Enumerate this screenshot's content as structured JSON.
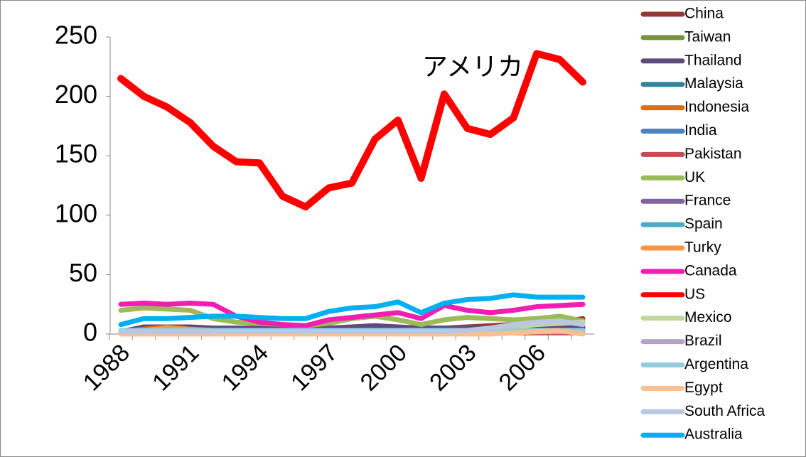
{
  "chart_data": {
    "type": "line",
    "annotation": "アメリカ",
    "categories": [
      "1988",
      null,
      null,
      "1991",
      null,
      null,
      "1994",
      null,
      null,
      "1997",
      null,
      null,
      "2000",
      null,
      null,
      "2003",
      null,
      null,
      "2006",
      null,
      null
    ],
    "ylim": [
      0,
      250
    ],
    "yticks": [
      0,
      50,
      100,
      150,
      200,
      250
    ],
    "series": [
      {
        "name": "China",
        "color": "#953735",
        "values": [
          1,
          1,
          1,
          2,
          2,
          2,
          2,
          2,
          3,
          3,
          3,
          4,
          4,
          4,
          5,
          6,
          7,
          8,
          9,
          10,
          13
        ]
      },
      {
        "name": "Taiwan",
        "color": "#77933c",
        "values": [
          3,
          3,
          3,
          3,
          3,
          3,
          3,
          3,
          3,
          3,
          4,
          4,
          4,
          4,
          5,
          5,
          5,
          6,
          6,
          6,
          6
        ]
      },
      {
        "name": "Thailand",
        "color": "#604a7b",
        "values": [
          2,
          6,
          6,
          6,
          5,
          5,
          5,
          5,
          5,
          5,
          6,
          7,
          6,
          5,
          5,
          5,
          5,
          5,
          5,
          5,
          5
        ]
      },
      {
        "name": "Malaysia",
        "color": "#31849b",
        "values": [
          1,
          2,
          2,
          2,
          2,
          2,
          2,
          2,
          2,
          2,
          2,
          2,
          2,
          2,
          2,
          2,
          2,
          2,
          2,
          2,
          2
        ]
      },
      {
        "name": "Indonesia",
        "color": "#e46c0a",
        "values": [
          2,
          4,
          6,
          4,
          3,
          3,
          3,
          3,
          3,
          3,
          2,
          2,
          2,
          2,
          2,
          2,
          2,
          2,
          2,
          2,
          2
        ]
      },
      {
        "name": "India",
        "color": "#4f81bd",
        "values": [
          2,
          2,
          2,
          3,
          3,
          3,
          3,
          3,
          3,
          3,
          3,
          3,
          3,
          3,
          3,
          3,
          3,
          3,
          3,
          3,
          3
        ]
      },
      {
        "name": "Pakistan",
        "color": "#c0504d",
        "values": [
          1,
          1,
          1,
          1,
          1,
          1,
          1,
          1,
          1,
          1,
          1,
          1,
          1,
          1,
          1,
          1,
          1,
          1,
          1,
          1,
          1
        ]
      },
      {
        "name": "UK",
        "color": "#9bbb59",
        "values": [
          20,
          22,
          21,
          20,
          13,
          10,
          9,
          8,
          7,
          9,
          13,
          15,
          12,
          8,
          12,
          14,
          13,
          12,
          13,
          15,
          11
        ]
      },
      {
        "name": "France",
        "color": "#8064a2",
        "values": [
          3,
          3,
          3,
          3,
          3,
          3,
          3,
          3,
          3,
          3,
          3,
          3,
          3,
          3,
          3,
          3,
          3,
          3,
          3,
          3,
          3
        ]
      },
      {
        "name": "Spain",
        "color": "#4bacc6",
        "values": [
          2,
          2,
          2,
          2,
          2,
          2,
          2,
          2,
          2,
          2,
          2,
          2,
          2,
          2,
          2,
          2,
          2,
          2,
          2,
          2,
          2
        ]
      },
      {
        "name": "Turky",
        "color": "#f79646",
        "values": [
          2,
          3,
          5,
          4,
          3,
          3,
          3,
          3,
          3,
          3,
          3,
          3,
          3,
          3,
          3,
          3,
          3,
          3,
          3,
          3,
          3
        ]
      },
      {
        "name": "Canada",
        "color": "#f01fb4",
        "values": [
          25,
          26,
          25,
          26,
          25,
          15,
          10,
          8,
          7,
          12,
          14,
          16,
          18,
          13,
          24,
          20,
          18,
          20,
          23,
          24,
          25
        ]
      },
      {
        "name": "US",
        "color": "#ff0000",
        "values": [
          215,
          200,
          191,
          178,
          158,
          145,
          144,
          116,
          107,
          123,
          127,
          164,
          180,
          131,
          202,
          173,
          168,
          182,
          236,
          231,
          212
        ]
      },
      {
        "name": "Mexico",
        "color": "#c3d69b",
        "values": [
          3,
          3,
          3,
          3,
          3,
          3,
          3,
          3,
          3,
          3,
          3,
          3,
          3,
          3,
          3,
          3,
          4,
          6,
          8,
          9,
          10
        ]
      },
      {
        "name": "Brazil",
        "color": "#b3a2c7",
        "values": [
          2,
          2,
          2,
          2,
          2,
          2,
          2,
          2,
          2,
          2,
          2,
          2,
          2,
          2,
          2,
          2,
          2,
          2,
          2,
          2,
          2
        ]
      },
      {
        "name": "Argentina",
        "color": "#93cddd",
        "values": [
          3,
          3,
          3,
          3,
          3,
          3,
          3,
          3,
          3,
          3,
          3,
          3,
          3,
          3,
          3,
          3,
          3,
          3,
          3,
          3,
          3
        ]
      },
      {
        "name": "Egypt",
        "color": "#fac090",
        "values": [
          0,
          0,
          0,
          0,
          0,
          0,
          0,
          0,
          0,
          0,
          0,
          0,
          0,
          0,
          0,
          0,
          0,
          1,
          2,
          3,
          0
        ]
      },
      {
        "name": "South Africa",
        "color": "#b9c7e0",
        "values": [
          2,
          2,
          2,
          2,
          2,
          2,
          2,
          2,
          2,
          2,
          2,
          2,
          2,
          2,
          2,
          3,
          5,
          8,
          10,
          11,
          8
        ]
      },
      {
        "name": "Australia",
        "color": "#00b0f0",
        "values": [
          8,
          13,
          13,
          14,
          15,
          15,
          14,
          13,
          13,
          19,
          22,
          23,
          27,
          18,
          26,
          29,
          30,
          33,
          31,
          31,
          31
        ]
      }
    ]
  }
}
